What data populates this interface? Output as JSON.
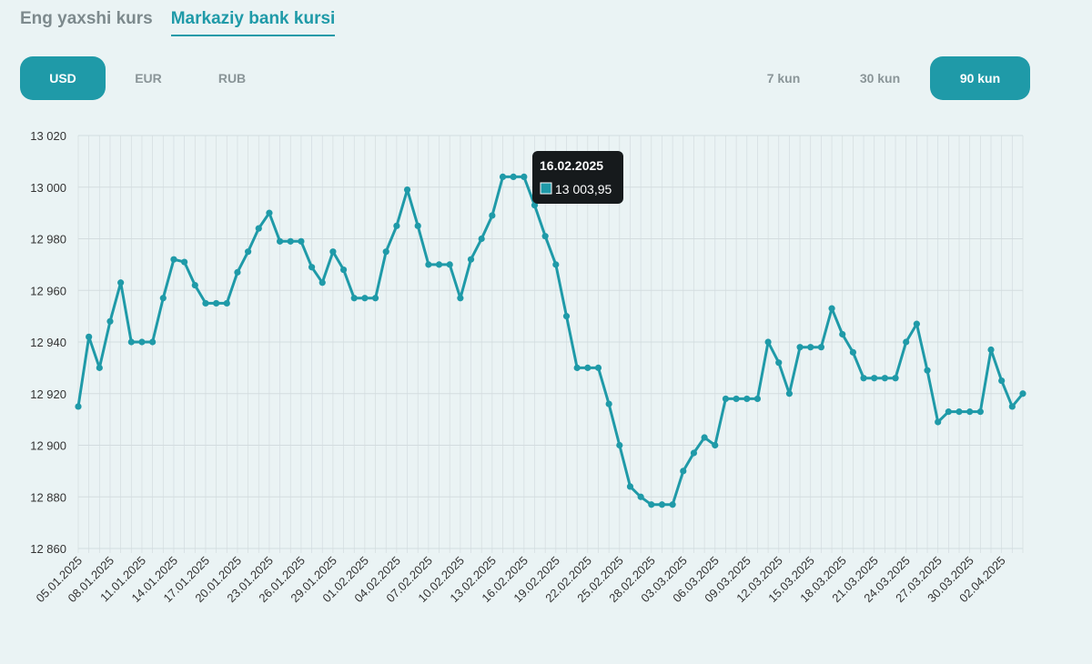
{
  "tabs": [
    {
      "label": "Eng yaxshi kurs",
      "active": false
    },
    {
      "label": "Markaziy bank kursi",
      "active": true
    }
  ],
  "currencies": [
    {
      "label": "USD",
      "active": true
    },
    {
      "label": "EUR",
      "active": false
    },
    {
      "label": "RUB",
      "active": false
    }
  ],
  "periods": [
    {
      "label": "7 kun",
      "active": false
    },
    {
      "label": "30 kun",
      "active": false
    },
    {
      "label": "90 kun",
      "active": true
    }
  ],
  "colors": {
    "accent": "#1f9aa8",
    "grid": "#d3dcdf",
    "tooltip": "#161a1c"
  },
  "tooltip": {
    "date": "16.02.2025",
    "value": "13 003,95"
  },
  "chart_data": {
    "type": "line",
    "title": "",
    "xlabel": "",
    "ylabel": "",
    "ylim": [
      12860,
      13020
    ],
    "yticks": [
      12860,
      12880,
      12900,
      12920,
      12940,
      12960,
      12980,
      13000,
      13020
    ],
    "ytick_labels": [
      "12 860",
      "12 880",
      "12 900",
      "12 920",
      "12 940",
      "12 960",
      "12 980",
      "13 000",
      "13 020"
    ],
    "grid": true,
    "legend": "none",
    "x_tick_labels": [
      "05.01.2025",
      "08.01.2025",
      "11.01.2025",
      "14.01.2025",
      "17.01.2025",
      "20.01.2025",
      "23.01.2025",
      "26.01.2025",
      "29.01.2025",
      "01.02.2025",
      "04.02.2025",
      "07.02.2025",
      "10.02.2025",
      "13.02.2025",
      "16.02.2025",
      "19.02.2025",
      "22.02.2025",
      "25.02.2025",
      "28.02.2025",
      "03.03.2025",
      "06.03.2025",
      "09.03.2025",
      "12.03.2025",
      "15.03.2025",
      "18.03.2025",
      "21.03.2025",
      "24.03.2025",
      "27.03.2025",
      "30.03.2025",
      "02.04.2025"
    ],
    "series": [
      {
        "values": [
          12915,
          12942,
          12930,
          12948,
          12963,
          12940,
          12940,
          12940,
          12957,
          12972,
          12971,
          12962,
          12955,
          12955,
          12955,
          12967,
          12975,
          12984,
          12990,
          12979,
          12979,
          12979,
          12969,
          12963,
          12975,
          12968,
          12957,
          12957,
          12957,
          12975,
          12985,
          12999,
          12985,
          12970,
          12970,
          12970,
          12957,
          12972,
          12980,
          12989,
          13004,
          13004,
          13004,
          12993,
          12981,
          12970,
          12950,
          12930,
          12930,
          12930,
          12916,
          12900,
          12884,
          12880,
          12877,
          12877,
          12877,
          12890,
          12897,
          12903,
          12900,
          12918,
          12918,
          12918,
          12918,
          12940,
          12932,
          12920,
          12938,
          12938,
          12938,
          12953,
          12943,
          12936,
          12926,
          12926,
          12926,
          12926,
          12940,
          12947,
          12929,
          12909,
          12913,
          12913,
          12913,
          12913,
          12937,
          12925,
          12915,
          12920
        ]
      }
    ]
  }
}
